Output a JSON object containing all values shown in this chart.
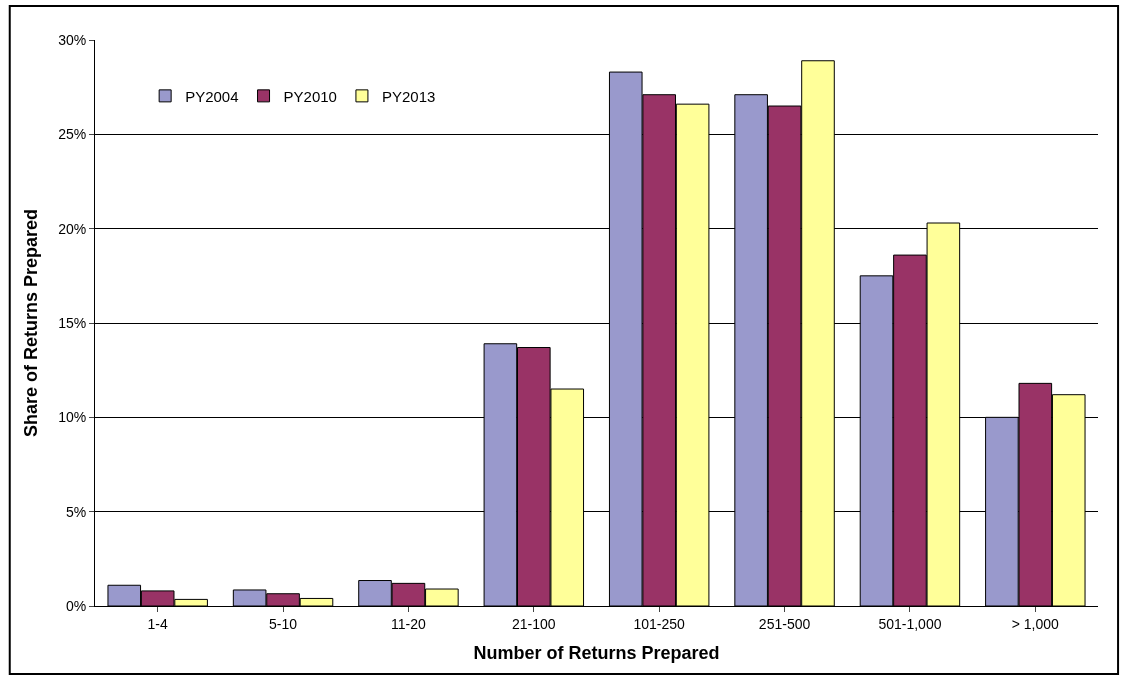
{
  "chart_data": {
    "type": "bar",
    "xlabel": "Number of Returns Prepared",
    "ylabel": "Share of Returns Prepared",
    "categories": [
      "1-4",
      "5-10",
      "11-20",
      "21-100",
      "101-250",
      "251-500",
      "501-1,000",
      "> 1,000"
    ],
    "series": [
      {
        "name": "PY2004",
        "color": "#9999cc",
        "values": [
          1.1,
          0.85,
          1.35,
          13.9,
          28.3,
          27.1,
          17.5,
          10.0
        ]
      },
      {
        "name": "PY2010",
        "color": "#993366",
        "values": [
          0.8,
          0.65,
          1.2,
          13.7,
          27.1,
          26.5,
          18.6,
          11.8
        ]
      },
      {
        "name": "PY2013",
        "color": "#ffff99",
        "values": [
          0.35,
          0.4,
          0.9,
          11.5,
          26.6,
          28.9,
          20.3,
          11.2
        ]
      }
    ],
    "ylim": [
      0,
      30
    ],
    "yticks": [
      {
        "value": 0,
        "label": "0%"
      },
      {
        "value": 5,
        "label": "5%"
      },
      {
        "value": 10,
        "label": "10%"
      },
      {
        "value": 15,
        "label": "15%"
      },
      {
        "value": 20,
        "label": "20%"
      },
      {
        "value": 25,
        "label": "25%"
      },
      {
        "value": 30,
        "label": "30%"
      }
    ],
    "grid": "y",
    "legend": "top left"
  }
}
